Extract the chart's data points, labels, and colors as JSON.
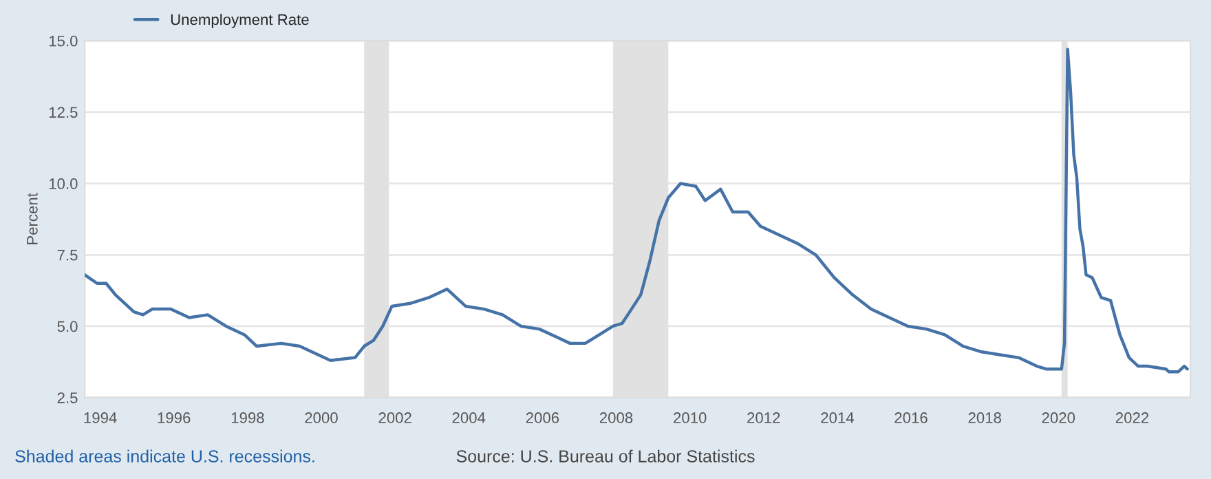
{
  "chart_data": {
    "type": "line",
    "ylabel": "Percent",
    "x": [
      "1993-08",
      "1993-12",
      "1994-03",
      "1994-06",
      "1994-12",
      "1995-03",
      "1995-06",
      "1995-12",
      "1996-06",
      "1996-12",
      "1997-06",
      "1997-12",
      "1998-04",
      "1998-12",
      "1999-06",
      "1999-12",
      "2000-04",
      "2000-12",
      "2001-03",
      "2001-06",
      "2001-09",
      "2001-12",
      "2002-06",
      "2002-12",
      "2003-06",
      "2003-12",
      "2004-06",
      "2004-12",
      "2005-06",
      "2005-12",
      "2006-06",
      "2006-10",
      "2007-03",
      "2007-06",
      "2007-12",
      "2008-03",
      "2008-06",
      "2008-09",
      "2008-12",
      "2009-03",
      "2009-06",
      "2009-10",
      "2010-03",
      "2010-06",
      "2010-11",
      "2011-03",
      "2011-08",
      "2011-12",
      "2012-06",
      "2012-12",
      "2013-06",
      "2013-12",
      "2014-06",
      "2014-12",
      "2015-06",
      "2015-12",
      "2016-06",
      "2016-12",
      "2017-06",
      "2017-12",
      "2018-06",
      "2018-12",
      "2019-06",
      "2019-09",
      "2020-01",
      "2020-02",
      "2020-03",
      "2020-04",
      "2020-05",
      "2020-06",
      "2020-07",
      "2020-08",
      "2020-09",
      "2020-10",
      "2020-12",
      "2021-03",
      "2021-06",
      "2021-09",
      "2021-12",
      "2022-03",
      "2022-06",
      "2022-12",
      "2023-01",
      "2023-04",
      "2023-06",
      "2023-07"
    ],
    "series": [
      {
        "name": "Unemployment Rate",
        "color": "#4572a7",
        "values": [
          6.8,
          6.5,
          6.5,
          6.1,
          5.5,
          5.4,
          5.6,
          5.6,
          5.3,
          5.4,
          5.0,
          4.7,
          4.3,
          4.4,
          4.3,
          4.0,
          3.8,
          3.9,
          4.3,
          4.5,
          5.0,
          5.7,
          5.8,
          6.0,
          6.3,
          5.7,
          5.6,
          5.4,
          5.0,
          4.9,
          4.6,
          4.4,
          4.4,
          4.6,
          5.0,
          5.1,
          5.6,
          6.1,
          7.3,
          8.7,
          9.5,
          10.0,
          9.9,
          9.4,
          9.8,
          9.0,
          9.0,
          8.5,
          8.2,
          7.9,
          7.5,
          6.7,
          6.1,
          5.6,
          5.3,
          5.0,
          4.9,
          4.7,
          4.3,
          4.1,
          4.0,
          3.9,
          3.6,
          3.5,
          3.5,
          3.5,
          4.4,
          14.7,
          13.2,
          11.0,
          10.2,
          8.4,
          7.8,
          6.8,
          6.7,
          6.0,
          5.9,
          4.7,
          3.9,
          3.6,
          3.6,
          3.5,
          3.4,
          3.4,
          3.6,
          3.5
        ]
      }
    ],
    "xlim": [
      "1993-08",
      "2023-08"
    ],
    "xticks": [
      {
        "value": "1994",
        "label": "1994"
      },
      {
        "value": "1996",
        "label": "1996"
      },
      {
        "value": "1998",
        "label": "1998"
      },
      {
        "value": "2000",
        "label": "2000"
      },
      {
        "value": "2002",
        "label": "2002"
      },
      {
        "value": "2004",
        "label": "2004"
      },
      {
        "value": "2006",
        "label": "2006"
      },
      {
        "value": "2008",
        "label": "2008"
      },
      {
        "value": "2010",
        "label": "2010"
      },
      {
        "value": "2012",
        "label": "2012"
      },
      {
        "value": "2014",
        "label": "2014"
      },
      {
        "value": "2016",
        "label": "2016"
      },
      {
        "value": "2018",
        "label": "2018"
      },
      {
        "value": "2020",
        "label": "2020"
      },
      {
        "value": "2022",
        "label": "2022"
      }
    ],
    "ylim": [
      2.5,
      15.0
    ],
    "yticks": [
      {
        "value": 2.5,
        "label": "2.5"
      },
      {
        "value": 5.0,
        "label": "5.0"
      },
      {
        "value": 7.5,
        "label": "7.5"
      },
      {
        "value": 10.0,
        "label": "10.0"
      },
      {
        "value": 12.5,
        "label": "12.5"
      },
      {
        "value": 15.0,
        "label": "15.0"
      }
    ],
    "bands": [
      {
        "axis": "x",
        "from": "2001-03",
        "to": "2001-11",
        "color": "#e1e1e1"
      },
      {
        "axis": "x",
        "from": "2007-12",
        "to": "2009-06",
        "color": "#e1e1e1"
      },
      {
        "axis": "x",
        "from": "2020-02",
        "to": "2020-04",
        "color": "#e1e1e1"
      }
    ],
    "grid": "y",
    "legend": "top left",
    "line_style": "solid",
    "marker": "none",
    "annotations": [
      "Shaded areas indicate U.S. recessions.",
      "Source: U.S. Bureau of Labor Statistics"
    ]
  }
}
